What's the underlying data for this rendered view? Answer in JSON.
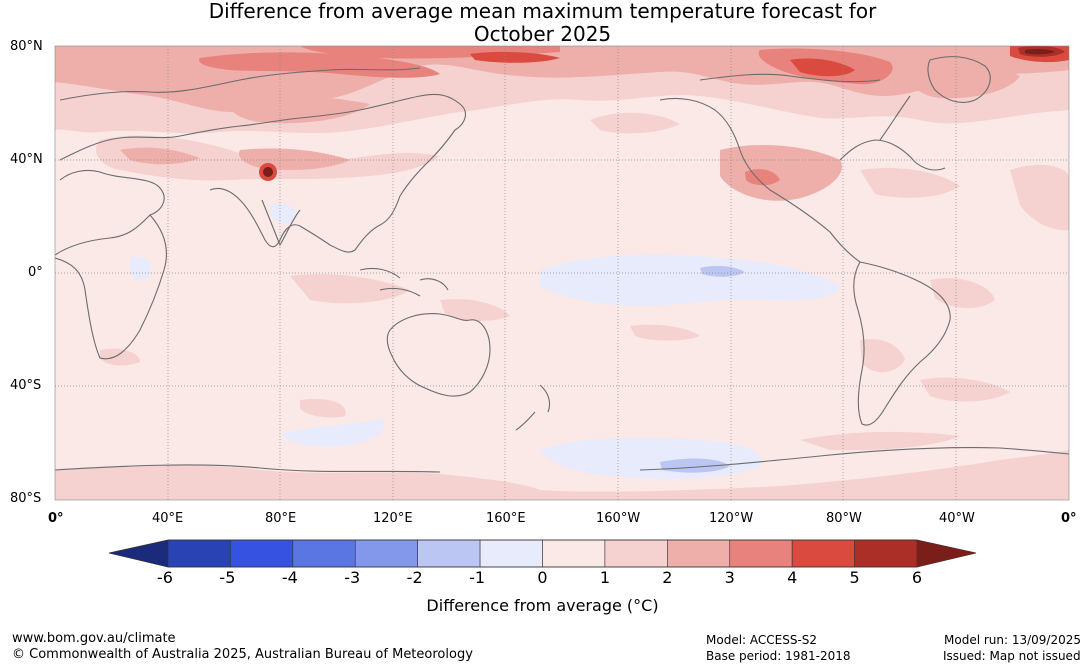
{
  "title": {
    "line1": "Difference from average mean maximum temperature forecast for",
    "line2": "October 2025"
  },
  "lat_labels": [
    "80°N",
    "40°N",
    "0°",
    "40°S",
    "80°S"
  ],
  "lon_labels": [
    "0°",
    "40°E",
    "80°E",
    "120°E",
    "160°E",
    "160°W",
    "120°W",
    "80°W",
    "40°W",
    "0°"
  ],
  "colorbar": {
    "ticks": [
      "-6",
      "-5",
      "-4",
      "-3",
      "-2",
      "-1",
      "0",
      "1",
      "2",
      "3",
      "4",
      "5",
      "6"
    ],
    "label": "Difference from average (°C)",
    "colors": [
      "#1b2a7b",
      "#2a43b4",
      "#3553e0",
      "#5a76e3",
      "#8398ea",
      "#bcc6f3",
      "#e7ebfb",
      "#fbe9e8",
      "#f5d2cf",
      "#eeaeaa",
      "#e7827c",
      "#da4a3f",
      "#ab2e27",
      "#7a1e1a"
    ]
  },
  "footer": {
    "website": "www.bom.gov.au/climate",
    "copyright": "© Commonwealth of Australia 2025, Australian Bureau of Meteorology",
    "model": "Model: ACCESS-S2",
    "base_period": "Base period: 1981-2018",
    "model_run": "Model run: 13/09/2025",
    "issued": "Issued: Map not issued"
  }
}
